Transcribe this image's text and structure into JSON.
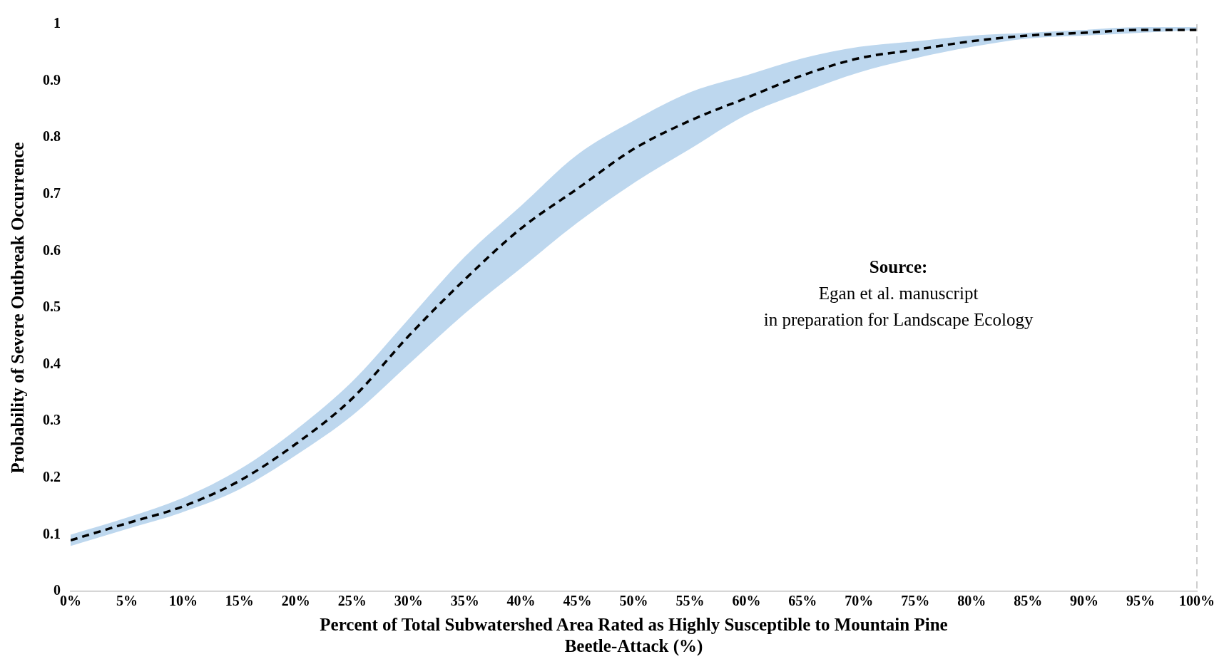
{
  "chart_data": {
    "type": "line",
    "xlabel": "Percent of Total Subwatershed Area Rated as Highly Susceptible to Mountain Pine Beetle-Attack (%)",
    "ylabel": "Probability of Severe Outbreak Occurrence",
    "x": [
      0,
      5,
      10,
      15,
      20,
      25,
      30,
      35,
      40,
      45,
      50,
      55,
      60,
      65,
      70,
      75,
      80,
      85,
      90,
      95,
      100
    ],
    "series": [
      {
        "color": "#000000",
        "values": [
          0.09,
          0.12,
          0.15,
          0.195,
          0.26,
          0.34,
          0.45,
          0.55,
          0.64,
          0.71,
          0.78,
          0.83,
          0.87,
          0.91,
          0.94,
          0.955,
          0.97,
          0.98,
          0.985,
          0.99,
          0.99
        ],
        "lower": [
          0.08,
          0.11,
          0.14,
          0.18,
          0.24,
          0.31,
          0.4,
          0.49,
          0.57,
          0.65,
          0.72,
          0.78,
          0.84,
          0.88,
          0.915,
          0.94,
          0.96,
          0.975,
          0.98,
          0.985,
          0.99
        ],
        "upper": [
          0.1,
          0.13,
          0.165,
          0.215,
          0.285,
          0.37,
          0.48,
          0.59,
          0.68,
          0.77,
          0.83,
          0.88,
          0.91,
          0.94,
          0.96,
          0.97,
          0.98,
          0.985,
          0.99,
          0.995,
          0.995
        ]
      }
    ],
    "xlim": [
      0,
      100
    ],
    "xticks": [
      {
        "value": 0,
        "label": "0%"
      },
      {
        "value": 5,
        "label": "5%"
      },
      {
        "value": 10,
        "label": "10%"
      },
      {
        "value": 15,
        "label": "15%"
      },
      {
        "value": 20,
        "label": "20%"
      },
      {
        "value": 25,
        "label": "25%"
      },
      {
        "value": 30,
        "label": "30%"
      },
      {
        "value": 35,
        "label": "35%"
      },
      {
        "value": 40,
        "label": "40%"
      },
      {
        "value": 45,
        "label": "45%"
      },
      {
        "value": 50,
        "label": "50%"
      },
      {
        "value": 55,
        "label": "55%"
      },
      {
        "value": 60,
        "label": "60%"
      },
      {
        "value": 65,
        "label": "65%"
      },
      {
        "value": 70,
        "label": "70%"
      },
      {
        "value": 75,
        "label": "75%"
      },
      {
        "value": 80,
        "label": "80%"
      },
      {
        "value": 85,
        "label": "85%"
      },
      {
        "value": 90,
        "label": "90%"
      },
      {
        "value": 95,
        "label": "95%"
      },
      {
        "value": 100,
        "label": "100%"
      }
    ],
    "ylim": [
      0,
      1
    ],
    "yticks": [
      0,
      0.1,
      0.2,
      0.3,
      0.4,
      0.5,
      0.6,
      0.7,
      0.8,
      0.9,
      1
    ],
    "ref_lines": [
      {
        "axis": "x",
        "value": 100,
        "color": "#bfbfbf",
        "line_style": "dashed"
      }
    ],
    "annotations": [
      "Source:",
      "Egan et al. manuscript",
      "in preparation for Landscape Ecology"
    ],
    "grid": false,
    "legend": false,
    "marker": "none",
    "line_style": "dashed"
  }
}
